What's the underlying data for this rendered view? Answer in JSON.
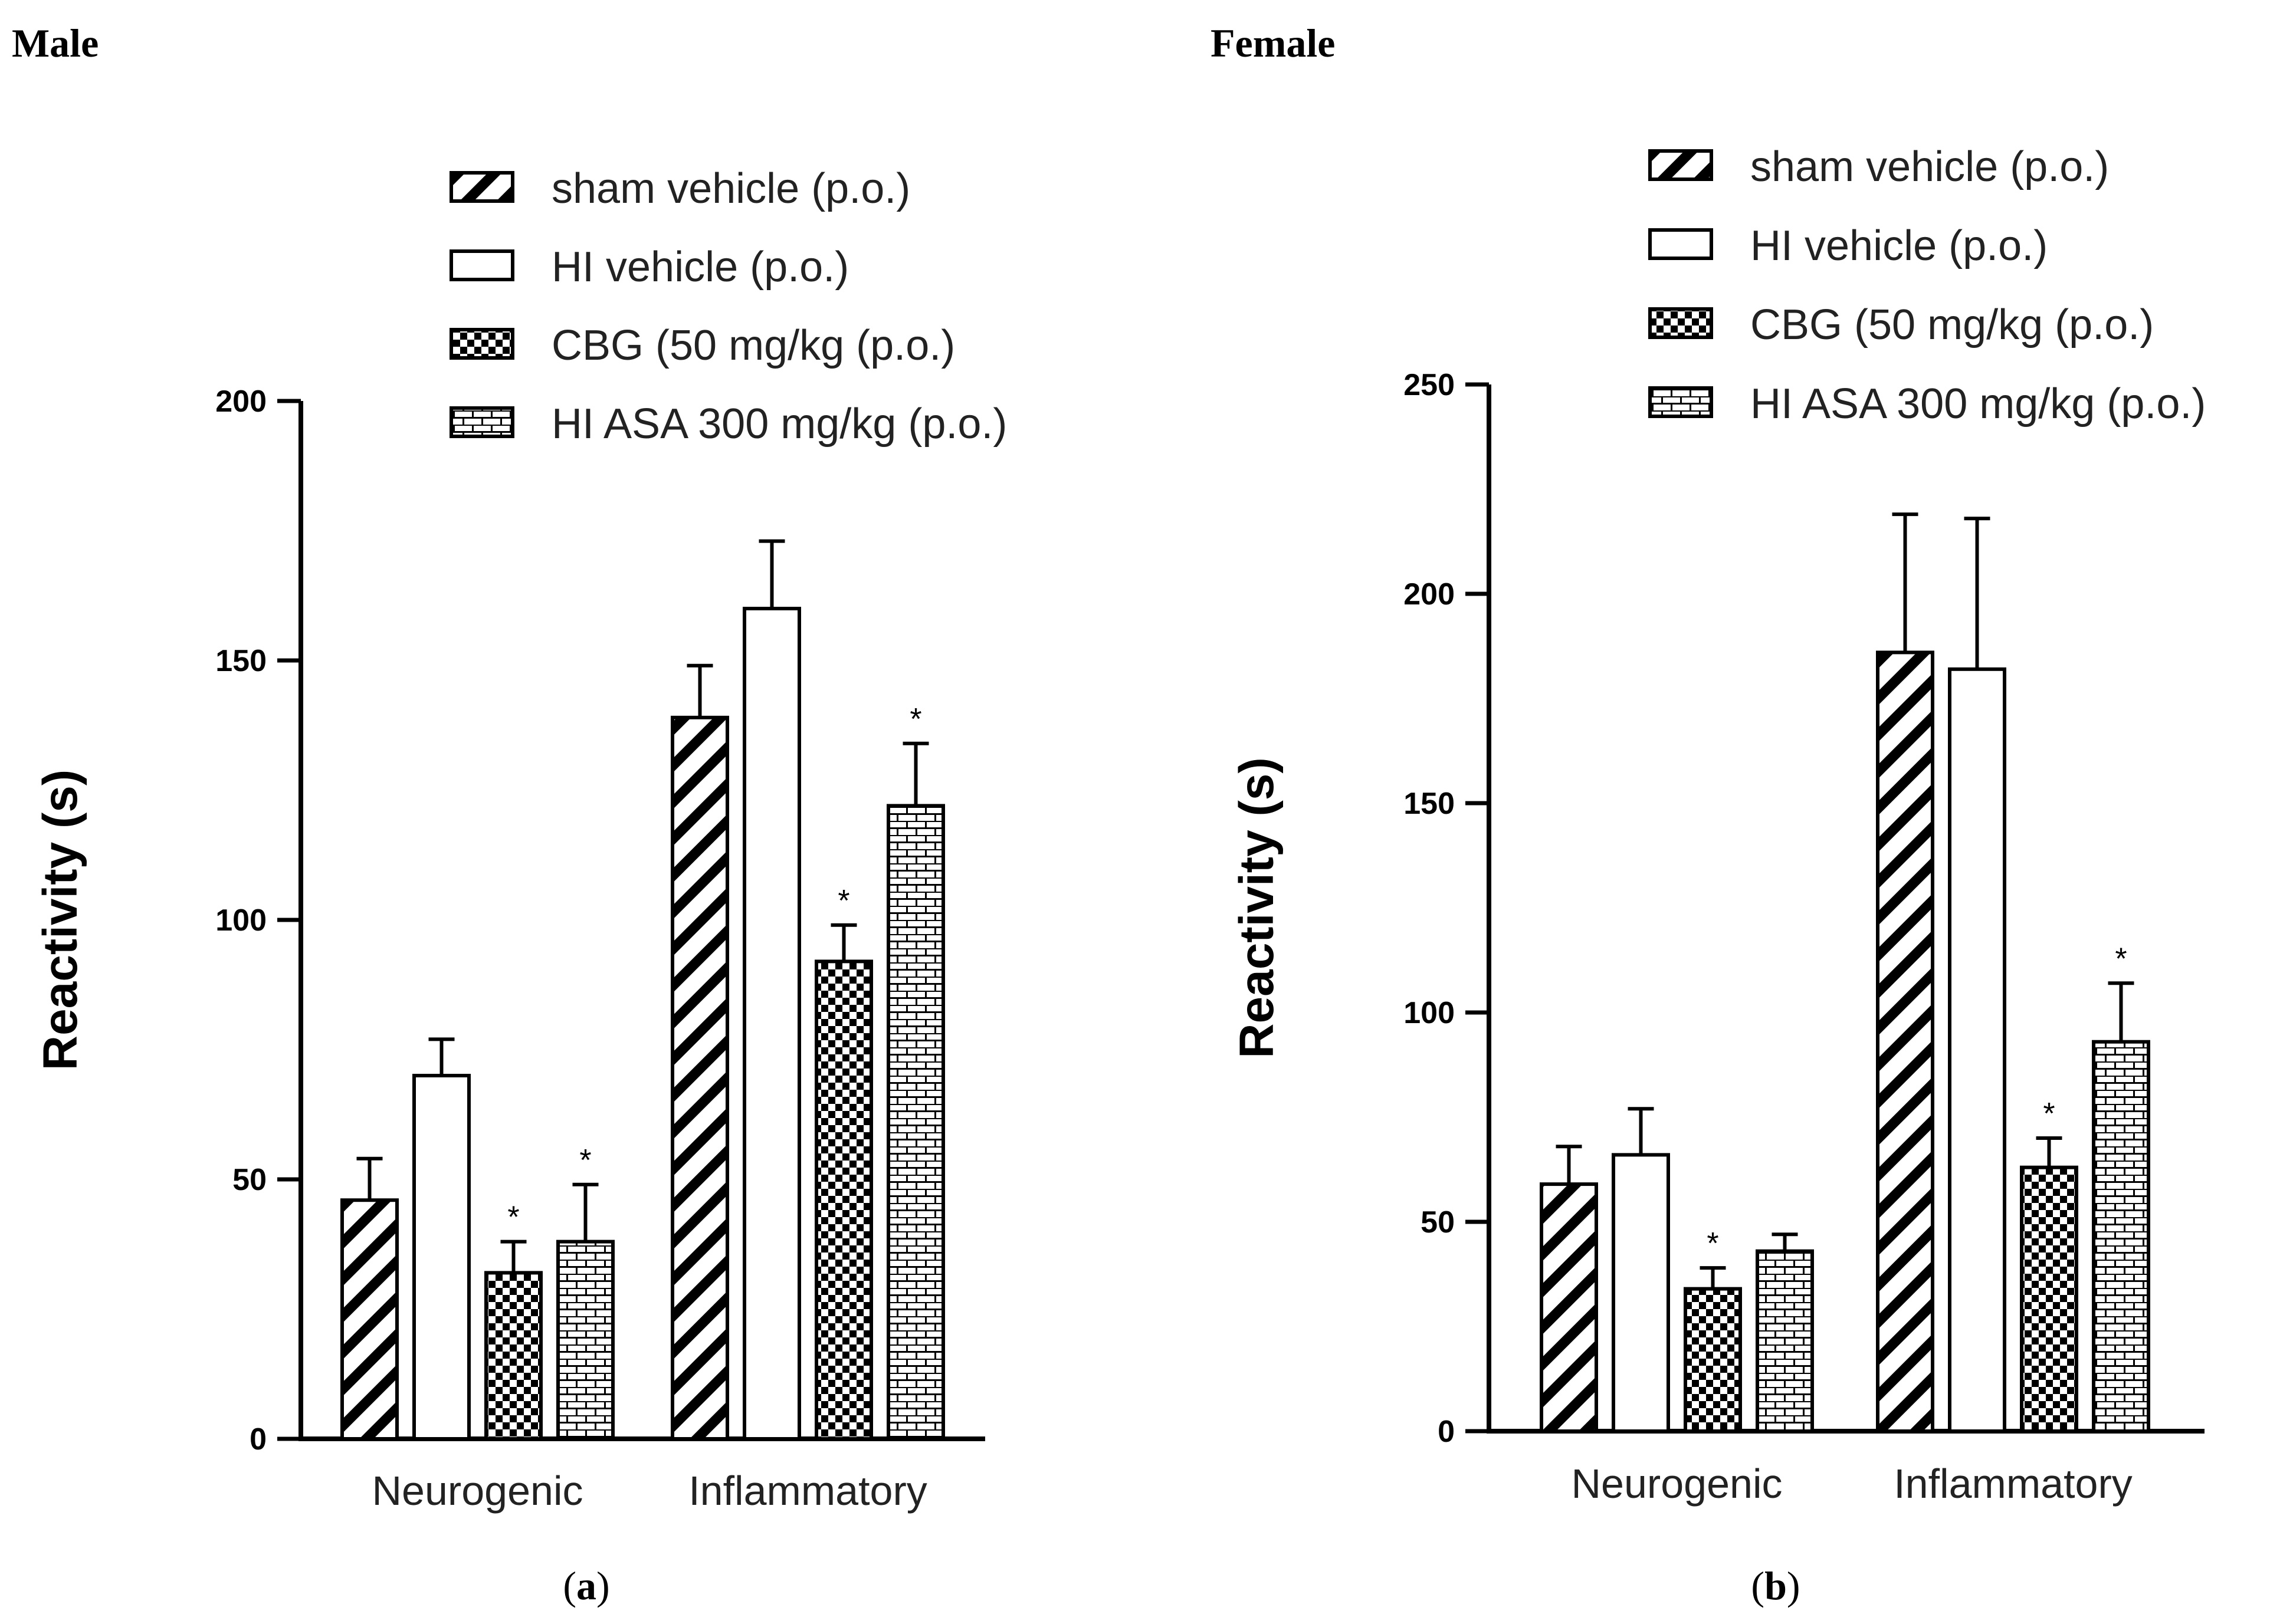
{
  "colors": {
    "ink": "#000000",
    "background": "#ffffff"
  },
  "chart_data": [
    {
      "type": "bar",
      "panel_title": "Male",
      "caption_open": "(",
      "caption_letter": "a",
      "caption_close": ")",
      "ylabel": "Reactivity (s)",
      "xlabel": "",
      "ylim": [
        0,
        200
      ],
      "yticks": [
        0,
        50,
        100,
        150,
        200
      ],
      "categories": [
        "Neurogenic",
        "Inflammatory"
      ],
      "series": [
        {
          "name": "sham vehicle (p.o.)",
          "pattern": "diagonal-icon",
          "values": [
            46,
            139
          ],
          "errors": [
            8,
            10
          ],
          "significant": [
            false,
            false
          ]
        },
        {
          "name": "HI vehicle (p.o.)",
          "pattern": "open-icon",
          "values": [
            70,
            160
          ],
          "errors": [
            7,
            13
          ],
          "significant": [
            false,
            false
          ]
        },
        {
          "name": "CBG (50 mg/kg (p.o.)",
          "pattern": "checker-icon",
          "values": [
            32,
            92
          ],
          "errors": [
            6,
            7
          ],
          "significant": [
            true,
            true
          ]
        },
        {
          "name": "HI ASA 300 mg/kg (p.o.)",
          "pattern": "brick-icon",
          "values": [
            38,
            122
          ],
          "errors": [
            11,
            12
          ],
          "significant": [
            true,
            true
          ]
        }
      ],
      "significance_mark": "*"
    },
    {
      "type": "bar",
      "panel_title": "Female",
      "caption_open": "(",
      "caption_letter": "b",
      "caption_close": ")",
      "ylabel": "Reactivity (s)",
      "xlabel": "",
      "ylim": [
        0,
        250
      ],
      "yticks": [
        0,
        50,
        100,
        150,
        200,
        250
      ],
      "categories": [
        "Neurogenic",
        "Inflammatory"
      ],
      "series": [
        {
          "name": "sham vehicle (p.o.)",
          "pattern": "diagonal-icon",
          "values": [
            59,
            186
          ],
          "errors": [
            9,
            33
          ],
          "significant": [
            false,
            false
          ]
        },
        {
          "name": "HI vehicle (p.o.)",
          "pattern": "open-icon",
          "values": [
            66,
            182
          ],
          "errors": [
            11,
            36
          ],
          "significant": [
            false,
            false
          ]
        },
        {
          "name": "CBG (50 mg/kg (p.o.)",
          "pattern": "checker-icon",
          "values": [
            34,
            63
          ],
          "errors": [
            5,
            7
          ],
          "significant": [
            true,
            true
          ]
        },
        {
          "name": "HI ASA 300 mg/kg (p.o.)",
          "pattern": "brick-icon",
          "values": [
            43,
            93
          ],
          "errors": [
            4,
            14
          ],
          "significant": [
            false,
            true
          ]
        }
      ],
      "significance_mark": "*"
    }
  ]
}
